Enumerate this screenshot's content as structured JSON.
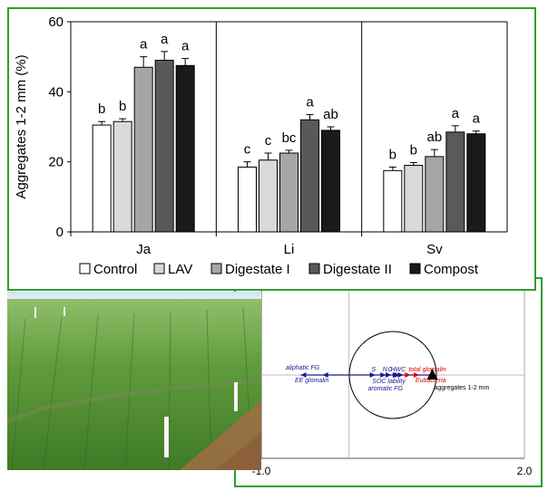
{
  "chart_data": [
    {
      "type": "bar",
      "ylabel": "Aggregates 1-2 mm (%)",
      "ylim": [
        0,
        60
      ],
      "yticks": [
        0,
        20,
        40,
        60
      ],
      "grid": false,
      "legend_position": "bottom",
      "categories": [
        "Ja",
        "Li",
        "Sv"
      ],
      "series": [
        {
          "name": "Control",
          "color": "#ffffff",
          "values": [
            30.5,
            18.5,
            17.5
          ],
          "errors": [
            1.0,
            1.5,
            1.0
          ],
          "letters": [
            "b",
            "c",
            "b"
          ]
        },
        {
          "name": "LAV",
          "color": "#d9d9d9",
          "values": [
            31.5,
            20.5,
            19.0
          ],
          "errors": [
            0.8,
            2.0,
            0.8
          ],
          "letters": [
            "b",
            "c",
            "b"
          ]
        },
        {
          "name": "Digestate I",
          "color": "#a6a6a6",
          "values": [
            47.0,
            22.5,
            21.5
          ],
          "errors": [
            3.0,
            0.8,
            2.0
          ],
          "letters": [
            "a",
            "bc",
            "ab"
          ]
        },
        {
          "name": "Digestate II",
          "color": "#595959",
          "values": [
            49.0,
            32.0,
            28.5
          ],
          "errors": [
            2.5,
            1.5,
            1.8
          ],
          "letters": [
            "a",
            "a",
            "a"
          ]
        },
        {
          "name": "Compost",
          "color": "#1a1a1a",
          "values": [
            47.5,
            29.0,
            28.0
          ],
          "errors": [
            2.0,
            1.0,
            0.8
          ],
          "letters": [
            "a",
            "ab",
            "a"
          ]
        }
      ]
    },
    {
      "type": "scatter",
      "xlim": [
        -1.0,
        2.0
      ],
      "xtick_labels": [
        "-1.0",
        "2.0"
      ],
      "correlation_circle": true,
      "response": {
        "label": "aggregates 1-2 mm",
        "x": 0.95,
        "y": 0.0
      },
      "variables": [
        {
          "label": "aliphatic FG",
          "x": -0.55,
          "y": 0.0,
          "color": "#1a1a8c"
        },
        {
          "label": "EE glomalin",
          "x": -0.3,
          "y": 0.0,
          "color": "#1a1a8c"
        },
        {
          "label": "S",
          "x": 0.3,
          "y": 0.0,
          "color": "#1a1a8c"
        },
        {
          "label": "N",
          "x": 0.42,
          "y": 0.0,
          "color": "#1a1a8c"
        },
        {
          "label": "C",
          "x": 0.48,
          "y": 0.0,
          "color": "#1a1a8c"
        },
        {
          "label": "HWC",
          "x": 0.56,
          "y": 0.0,
          "color": "#1a1a8c"
        },
        {
          "label": "total glomalin",
          "x": 0.7,
          "y": 0.0,
          "color": "#e00000"
        },
        {
          "label": "Eubacteria",
          "x": 0.8,
          "y": 0.0,
          "color": "#e00000"
        },
        {
          "label": "SOC lability",
          "x": 0.62,
          "y": 0.0,
          "color": "#1a1a8c"
        },
        {
          "label": "aromatic FG",
          "x": 0.58,
          "y": 0.0,
          "color": "#1a1a8c"
        }
      ]
    }
  ],
  "photo": {
    "name": "field-plots-photo"
  }
}
